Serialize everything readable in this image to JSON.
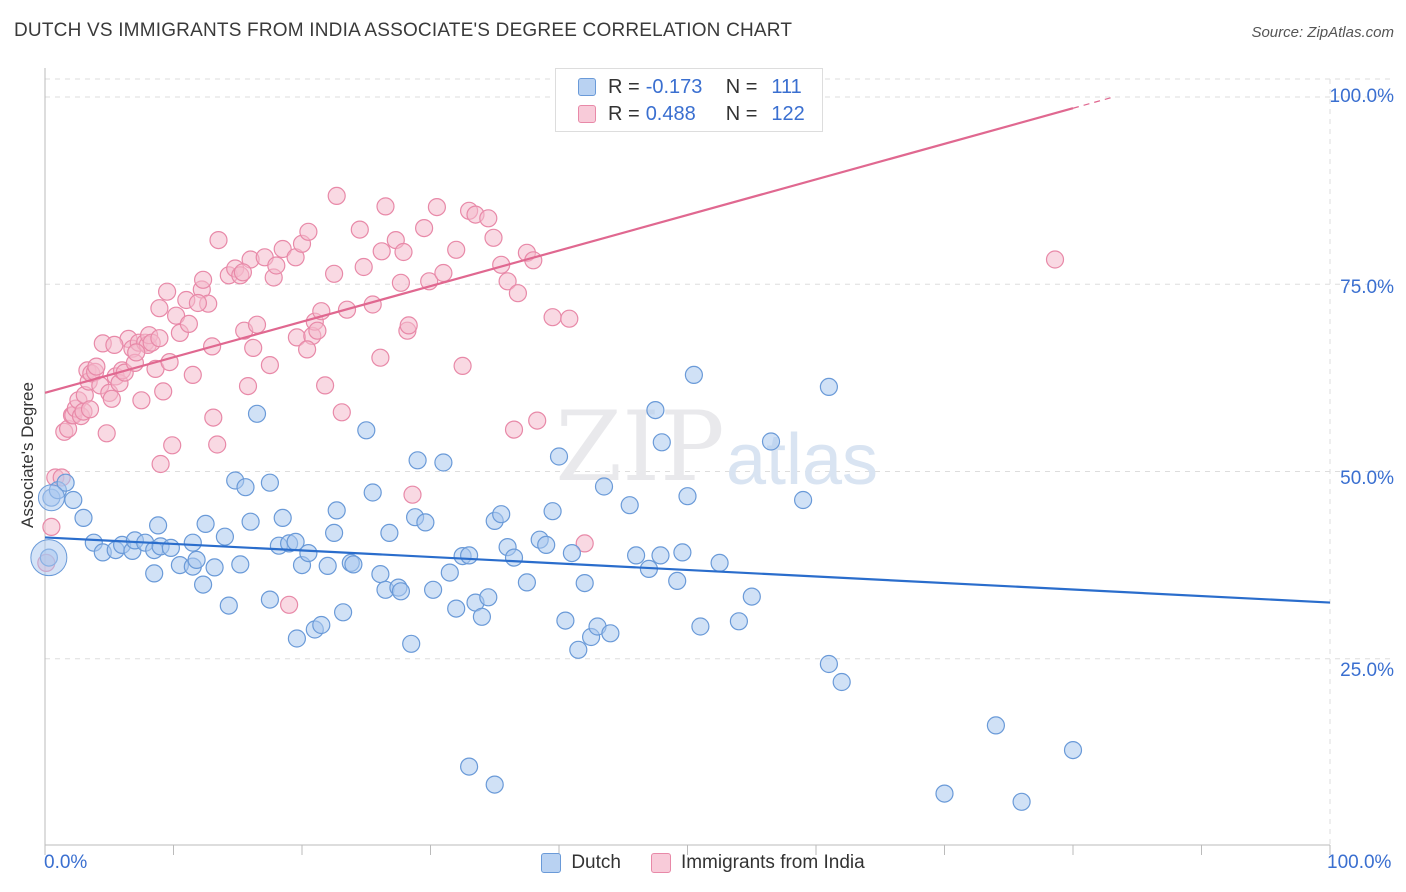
{
  "title": "DUTCH VS IMMIGRANTS FROM INDIA ASSOCIATE'S DEGREE CORRELATION CHART",
  "source": "Source: ZipAtlas.com",
  "watermark": {
    "zip": "ZIP",
    "atlas": "atlas"
  },
  "legend": {
    "r_label": "R =",
    "n_label": "N =",
    "dutch": {
      "r": "-0.173",
      "n": "111"
    },
    "india": {
      "r": "0.488",
      "n": "122"
    }
  },
  "colors": {
    "dutch_fill": "#a9c8ef",
    "dutch_stroke": "#6a9ad8",
    "dutch_line": "#2a6dcc",
    "india_fill": "#f4b9cc",
    "india_stroke": "#e889a8",
    "india_line": "#e06890",
    "grid": "#dddddd",
    "tick_label": "#3a6fd0"
  },
  "chart_data": {
    "type": "scatter",
    "title": "DUTCH VS IMMIGRANTS FROM INDIA ASSOCIATE'S DEGREE CORRELATION CHART",
    "xlabel": "",
    "ylabel": "Associate's Degree",
    "xlim": [
      0,
      100
    ],
    "ylim": [
      0,
      100
    ],
    "x_tick_labels": [
      "0.0%",
      "100.0%"
    ],
    "y_tick_labels": [
      "100.0%",
      "75.0%",
      "50.0%",
      "25.0%"
    ],
    "y_ticks": [
      100,
      75,
      50,
      25
    ],
    "grid": true,
    "legend_position": "top-center",
    "series": [
      {
        "name": "Dutch",
        "r": -0.173,
        "n": 111,
        "trend": {
          "x": [
            0,
            100
          ],
          "y": [
            41.2,
            32.5
          ],
          "dashed_from": null
        },
        "points": [
          [
            0.3,
            38.5
          ],
          [
            0.5,
            46.5
          ],
          [
            1,
            47.5
          ],
          [
            1.6,
            48.5
          ],
          [
            2.2,
            46.2
          ],
          [
            3,
            43.8
          ],
          [
            3.8,
            40.5
          ],
          [
            4.5,
            39.2
          ],
          [
            5.5,
            39.5
          ],
          [
            6,
            40.2
          ],
          [
            6.8,
            39.4
          ],
          [
            7,
            40.8
          ],
          [
            7.8,
            40.5
          ],
          [
            8.5,
            39.5
          ],
          [
            9,
            40
          ],
          [
            8.5,
            36.4
          ],
          [
            8.8,
            42.8
          ],
          [
            9.8,
            39.8
          ],
          [
            10.5,
            37.5
          ],
          [
            11.5,
            37.3
          ],
          [
            11.5,
            40.5
          ],
          [
            11.8,
            38.2
          ],
          [
            12.3,
            34.9
          ],
          [
            12.5,
            43
          ],
          [
            13.2,
            37.2
          ],
          [
            14,
            41.3
          ],
          [
            14.3,
            32.1
          ],
          [
            14.8,
            48.8
          ],
          [
            15.2,
            37.6
          ],
          [
            15.6,
            47.9
          ],
          [
            16,
            43.3
          ],
          [
            16.5,
            57.7
          ],
          [
            17.5,
            32.9
          ],
          [
            17.5,
            48.5
          ],
          [
            18.2,
            40.1
          ],
          [
            18.5,
            43.8
          ],
          [
            19,
            40.4
          ],
          [
            19.5,
            40.6
          ],
          [
            19.6,
            27.7
          ],
          [
            20,
            37.5
          ],
          [
            20.5,
            39.1
          ],
          [
            21,
            28.9
          ],
          [
            21.5,
            29.5
          ],
          [
            22.5,
            41.8
          ],
          [
            22.7,
            44.8
          ],
          [
            23.2,
            31.2
          ],
          [
            23.8,
            37.8
          ],
          [
            24,
            37.6
          ],
          [
            25,
            55.5
          ],
          [
            25.5,
            47.2
          ],
          [
            26.1,
            36.3
          ],
          [
            26.5,
            34.2
          ],
          [
            26.8,
            41.8
          ],
          [
            27.5,
            34.5
          ],
          [
            27.7,
            34
          ],
          [
            28.5,
            27
          ],
          [
            28.8,
            43.9
          ],
          [
            29,
            51.5
          ],
          [
            29.6,
            43.2
          ],
          [
            30.2,
            34.2
          ],
          [
            31,
            51.2
          ],
          [
            31.5,
            36.5
          ],
          [
            32,
            31.7
          ],
          [
            32.5,
            38.7
          ],
          [
            33,
            38.8
          ],
          [
            33.5,
            32.5
          ],
          [
            34,
            30.6
          ],
          [
            34.5,
            33.2
          ],
          [
            35,
            43.4
          ],
          [
            35.5,
            44.3
          ],
          [
            36,
            39.9
          ],
          [
            36.5,
            38.5
          ],
          [
            37.5,
            35.2
          ],
          [
            38.5,
            40.9
          ],
          [
            39,
            40.2
          ],
          [
            39.5,
            44.7
          ],
          [
            40,
            52
          ],
          [
            40.5,
            30.1
          ],
          [
            41,
            39.1
          ],
          [
            41.5,
            26.2
          ],
          [
            42,
            35.1
          ],
          [
            42.5,
            27.9
          ],
          [
            43,
            29.3
          ],
          [
            43.5,
            48
          ],
          [
            44,
            28.4
          ],
          [
            45.5,
            45.5
          ],
          [
            46,
            38.8
          ],
          [
            47.5,
            58.2
          ],
          [
            47.9,
            38.8
          ],
          [
            48,
            53.9
          ],
          [
            49.2,
            35.4
          ],
          [
            49.6,
            39.2
          ],
          [
            50,
            46.7
          ],
          [
            50.5,
            62.9
          ],
          [
            51,
            29.3
          ],
          [
            52.5,
            37.8
          ],
          [
            54,
            30
          ],
          [
            55,
            33.3
          ],
          [
            56.5,
            54
          ],
          [
            59,
            46.2
          ],
          [
            61,
            24.3
          ],
          [
            62,
            21.9
          ],
          [
            70,
            7
          ],
          [
            74,
            16.1
          ],
          [
            80,
            12.8
          ],
          [
            76,
            5.9
          ],
          [
            35,
            8.2
          ],
          [
            61,
            61.3
          ],
          [
            33,
            10.6
          ],
          [
            47,
            37
          ],
          [
            22,
            37.4
          ]
        ]
      },
      {
        "name": "Immigrants from India",
        "r": 0.488,
        "n": 122,
        "trend": {
          "x": [
            0,
            100
          ],
          "y": [
            60.5,
            108
          ],
          "dashed_from": 80
        },
        "points": [
          [
            0.1,
            37.8
          ],
          [
            0.5,
            42.6
          ],
          [
            0.8,
            49.2
          ],
          [
            1.3,
            49.2
          ],
          [
            1.5,
            55.3
          ],
          [
            1.8,
            55.7
          ],
          [
            2.1,
            57.5
          ],
          [
            2.2,
            57.5
          ],
          [
            2.4,
            58.4
          ],
          [
            2.6,
            59.5
          ],
          [
            2.8,
            57.4
          ],
          [
            3,
            58
          ],
          [
            3.1,
            60.2
          ],
          [
            3.3,
            63.5
          ],
          [
            3.4,
            62
          ],
          [
            3.5,
            58.3
          ],
          [
            3.6,
            63.1
          ],
          [
            3.9,
            63.3
          ],
          [
            4,
            64
          ],
          [
            4.3,
            61.5
          ],
          [
            4.5,
            67.1
          ],
          [
            4.8,
            55.1
          ],
          [
            5,
            60.5
          ],
          [
            5.2,
            59.7
          ],
          [
            5.5,
            62.7
          ],
          [
            5.8,
            61.8
          ],
          [
            6,
            63.5
          ],
          [
            6.2,
            63.2
          ],
          [
            6.5,
            67.7
          ],
          [
            6.8,
            66.4
          ],
          [
            7,
            64.5
          ],
          [
            7.3,
            67.2
          ],
          [
            7.5,
            59.5
          ],
          [
            7.8,
            67.2
          ],
          [
            8,
            66.9
          ],
          [
            8.1,
            68.2
          ],
          [
            8.3,
            67.2
          ],
          [
            8.6,
            63.7
          ],
          [
            8.9,
            71.8
          ],
          [
            9,
            51
          ],
          [
            9.2,
            60.7
          ],
          [
            9.5,
            74
          ],
          [
            9.9,
            53.5
          ],
          [
            10.2,
            70.8
          ],
          [
            10.5,
            68.5
          ],
          [
            11,
            72.9
          ],
          [
            11.2,
            69.7
          ],
          [
            11.5,
            62.9
          ],
          [
            12.2,
            74.3
          ],
          [
            12.7,
            72.4
          ],
          [
            13.1,
            57.2
          ],
          [
            13.4,
            53.6
          ],
          [
            14.3,
            76.2
          ],
          [
            14.8,
            77.1
          ],
          [
            15.2,
            76.2
          ],
          [
            15.5,
            68.8
          ],
          [
            16,
            78.3
          ],
          [
            16.2,
            66.5
          ],
          [
            16.5,
            69.6
          ],
          [
            17.1,
            78.6
          ],
          [
            17.8,
            75.9
          ],
          [
            18,
            77.5
          ],
          [
            18.5,
            79.7
          ],
          [
            19.5,
            78.6
          ],
          [
            19.6,
            67.9
          ],
          [
            20,
            80.4
          ],
          [
            20.5,
            82
          ],
          [
            20.8,
            68.1
          ],
          [
            21,
            70
          ],
          [
            21.5,
            71.4
          ],
          [
            22.5,
            76.4
          ],
          [
            22.7,
            86.8
          ],
          [
            23.5,
            71.6
          ],
          [
            24.5,
            82.3
          ],
          [
            25.5,
            72.3
          ],
          [
            26.2,
            79.4
          ],
          [
            26.5,
            85.4
          ],
          [
            27.3,
            80.9
          ],
          [
            27.7,
            75.2
          ],
          [
            28.2,
            68.8
          ],
          [
            29.5,
            82.5
          ],
          [
            29.9,
            75.4
          ],
          [
            30.5,
            85.3
          ],
          [
            31,
            76.5
          ],
          [
            32,
            79.6
          ],
          [
            32.5,
            64.1
          ],
          [
            33,
            84.8
          ],
          [
            33.5,
            84.3
          ],
          [
            34.5,
            83.8
          ],
          [
            34.9,
            81.2
          ],
          [
            35.5,
            77.6
          ],
          [
            36,
            75.4
          ],
          [
            36.8,
            73.8
          ],
          [
            37.5,
            79.2
          ],
          [
            38,
            78.2
          ],
          [
            38.3,
            56.8
          ],
          [
            39.5,
            70.6
          ],
          [
            13.5,
            80.9
          ],
          [
            17.5,
            64.2
          ],
          [
            19,
            32.2
          ],
          [
            20.4,
            66.3
          ],
          [
            21.8,
            61.5
          ],
          [
            26.1,
            65.2
          ],
          [
            27.9,
            79.3
          ],
          [
            36.5,
            55.6
          ],
          [
            28.6,
            46.9
          ],
          [
            42,
            40.4
          ],
          [
            40.8,
            70.4
          ],
          [
            21.2,
            68.8
          ],
          [
            15.8,
            61.4
          ],
          [
            23.1,
            57.9
          ],
          [
            13,
            66.7
          ],
          [
            11.9,
            72.5
          ],
          [
            9.7,
            64.6
          ],
          [
            5.4,
            66.9
          ],
          [
            7.1,
            65.9
          ],
          [
            8.9,
            67.8
          ],
          [
            12.3,
            75.6
          ],
          [
            15.4,
            76.6
          ],
          [
            24.8,
            77.3
          ],
          [
            28.3,
            69.5
          ],
          [
            78.6,
            78.3
          ]
        ]
      }
    ]
  },
  "bottom_legend": [
    "Dutch",
    "Immigrants from India"
  ]
}
